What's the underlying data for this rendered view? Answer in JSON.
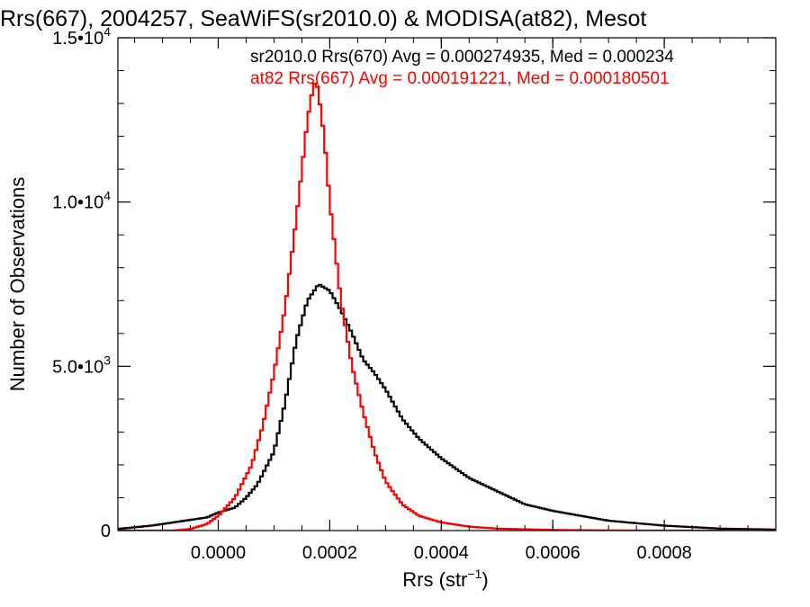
{
  "chart_data": {
    "type": "line",
    "title": "Rrs(667), 2004257, SeaWiFS(sr2010.0) & MODISA(at82), Mesot",
    "xlabel": "Rrs (str",
    "xlabel_sup": "−1",
    "xlabel_end": ")",
    "ylabel": "Number of Observations",
    "xlim": [
      -0.00018,
      0.001
    ],
    "ylim": [
      0,
      15000
    ],
    "x_ticks": [
      {
        "value": 0.0,
        "label": "0.0000"
      },
      {
        "value": 0.0002,
        "label": "0.0002"
      },
      {
        "value": 0.0004,
        "label": "0.0004"
      },
      {
        "value": 0.0006,
        "label": "0.0006"
      },
      {
        "value": 0.0008,
        "label": "0.0008"
      }
    ],
    "y_ticks": [
      {
        "value": 0,
        "base": "0",
        "exp": ""
      },
      {
        "value": 5000,
        "base": "5.0•10",
        "exp": "3"
      },
      {
        "value": 10000,
        "base": "1.0•10",
        "exp": "4"
      },
      {
        "value": 15000,
        "base": "1.5•10",
        "exp": "4"
      }
    ],
    "grid": false,
    "legend_position": "top-right",
    "series": [
      {
        "name": "sr2010.0 Rrs(670) Avg = 0.000274935, Med = 0.000234",
        "color": "#000000",
        "x": [
          -0.00018,
          -0.00012,
          -6e-05,
          -2e-05,
          0.0,
          3e-05,
          5e-05,
          7e-05,
          0.0001,
          0.00012,
          0.00014,
          0.00016,
          0.00018,
          0.0002,
          0.00022,
          0.00024,
          0.00026,
          0.00028,
          0.0003,
          0.00033,
          0.00036,
          0.0004,
          0.00045,
          0.0005,
          0.00055,
          0.0006,
          0.00065,
          0.0007,
          0.0008,
          0.0009,
          0.001
        ],
        "y": [
          50,
          150,
          300,
          400,
          550,
          700,
          1000,
          1400,
          2400,
          3900,
          5800,
          7000,
          7500,
          7300,
          6700,
          6000,
          5200,
          4800,
          4300,
          3400,
          2800,
          2200,
          1600,
          1200,
          800,
          600,
          450,
          300,
          150,
          60,
          30
        ]
      },
      {
        "name": "at82 Rrs(667) Avg = 0.000191221, Med = 0.000180501",
        "color": "#ff0000",
        "x": [
          -0.00018,
          -0.00012,
          -8e-05,
          -5e-05,
          -2e-05,
          0.0,
          3e-05,
          6e-05,
          8e-05,
          0.0001,
          0.00012,
          0.00014,
          0.00015,
          0.00016,
          0.00017,
          0.000175,
          0.00018,
          0.00019,
          0.0002,
          0.00022,
          0.00024,
          0.00026,
          0.00028,
          0.0003,
          0.00033,
          0.00036,
          0.0004,
          0.00045,
          0.0005,
          0.0006,
          0.0007,
          0.0008,
          0.0009,
          0.001
        ],
        "y": [
          0,
          0,
          0,
          50,
          200,
          450,
          1000,
          2000,
          3200,
          4800,
          6800,
          9500,
          11000,
          12500,
          13500,
          13700,
          13300,
          12000,
          10000,
          7000,
          5000,
          3600,
          2400,
          1500,
          800,
          450,
          250,
          120,
          60,
          20,
          5,
          0,
          0,
          0
        ]
      }
    ]
  }
}
